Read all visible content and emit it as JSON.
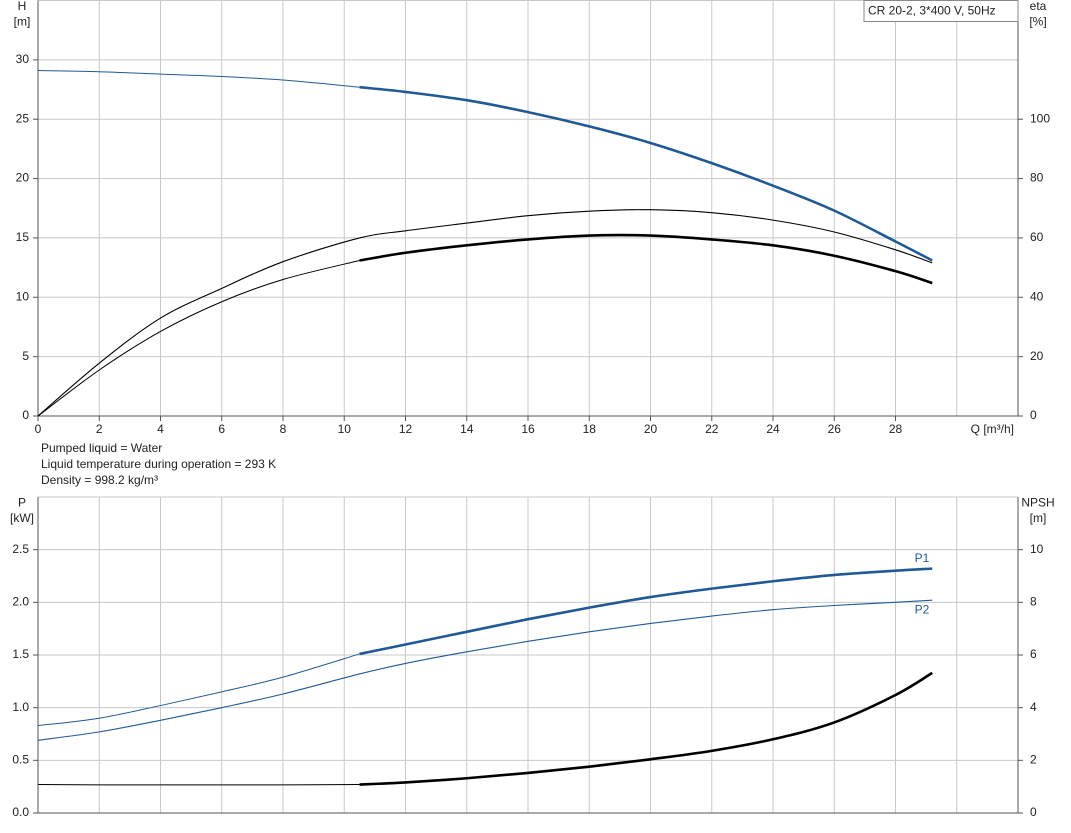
{
  "chart_data": [
    {
      "type": "line",
      "title": "CR 20-2, 3*400 V, 50Hz",
      "ylabel": "H",
      "yunit": "[m]",
      "y2label": "eta",
      "y2unit": "[%]",
      "xlabel": "Q [m³/h]",
      "x": [
        0,
        2,
        4,
        6,
        8,
        10.5,
        12,
        14,
        16,
        18,
        20,
        22,
        24,
        26,
        28,
        29.2
      ],
      "xlim": [
        0,
        32
      ],
      "xticks": [
        0,
        2,
        4,
        6,
        8,
        10,
        12,
        14,
        16,
        18,
        20,
        22,
        24,
        26,
        28
      ],
      "xgrid_step": 2,
      "ylim": [
        0,
        35
      ],
      "yticks": [
        0,
        5,
        10,
        15,
        20,
        25,
        30
      ],
      "y2lim": [
        0,
        140
      ],
      "y2ticks": [
        0,
        20,
        40,
        60,
        80,
        100
      ],
      "operating_range": [
        10.5,
        29.2
      ],
      "grid": true,
      "series": [
        {
          "color": "#1f5a96",
          "bold": true,
          "values": [
            29.1,
            29.0,
            28.8,
            28.6,
            28.3,
            27.7,
            27.3,
            26.6,
            25.6,
            24.4,
            23.0,
            21.3,
            19.4,
            17.3,
            14.7,
            13.1
          ]
        },
        {
          "color": "#000000",
          "bold": false,
          "axis": "y2",
          "values": [
            0,
            17.8,
            33,
            43,
            52,
            60,
            62.4,
            65,
            67.5,
            69,
            69.5,
            68.5,
            66,
            62,
            56,
            51.6
          ]
        },
        {
          "color": "#000000",
          "bold": true,
          "axis": "y2",
          "values": [
            0,
            15.5,
            28.5,
            38.5,
            46,
            52.4,
            55,
            57.5,
            59.5,
            60.8,
            60.8,
            59.5,
            57.5,
            54,
            48.8,
            44.8
          ]
        }
      ]
    },
    {
      "type": "line",
      "ylabel": "P",
      "yunit": "[kW]",
      "y2label": "NPSH",
      "y2unit": "[m]",
      "x": [
        0,
        2,
        4,
        6,
        8,
        10.5,
        12,
        14,
        16,
        18,
        20,
        22,
        24,
        26,
        28,
        29.2
      ],
      "xlim": [
        0,
        32
      ],
      "xgrid_step": 2,
      "ylim": [
        0,
        3
      ],
      "yticks": [
        {
          "value": 0,
          "label": "0.0"
        },
        0.5,
        {
          "value": 1,
          "label": "1.0"
        },
        1.5,
        {
          "value": 2,
          "label": "2.0"
        },
        2.5
      ],
      "y2lim": [
        0,
        12
      ],
      "y2ticks": [
        0,
        2,
        4,
        6,
        8,
        10
      ],
      "operating_range": [
        10.5,
        29.2
      ],
      "grid": true,
      "series": [
        {
          "name": "P1",
          "color": "#1f5a96",
          "bold": true,
          "values": [
            0.83,
            0.9,
            1.02,
            1.15,
            1.29,
            1.51,
            1.6,
            1.72,
            1.84,
            1.95,
            2.05,
            2.13,
            2.2,
            2.26,
            2.3,
            2.32
          ]
        },
        {
          "name": "P2",
          "color": "#1f5a96",
          "bold": false,
          "values": [
            0.69,
            0.77,
            0.88,
            1.0,
            1.13,
            1.32,
            1.42,
            1.53,
            1.63,
            1.72,
            1.8,
            1.87,
            1.93,
            1.97,
            2.0,
            2.02
          ]
        },
        {
          "color": "#000000",
          "bold": true,
          "axis": "y2",
          "values": [
            1.08,
            1.07,
            1.07,
            1.07,
            1.07,
            1.08,
            1.16,
            1.32,
            1.52,
            1.76,
            2.04,
            2.36,
            2.8,
            3.44,
            4.48,
            5.32
          ]
        }
      ]
    }
  ],
  "notes": [
    "Pumped liquid = Water",
    "Liquid temperature during operation = 293 K",
    "Density = 998.2 kg/m³"
  ]
}
